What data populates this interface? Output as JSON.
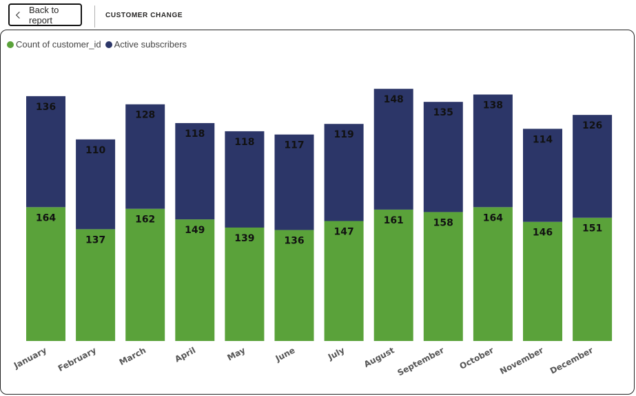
{
  "header": {
    "back_label": "Back to report",
    "page_title": "CUSTOMER CHANGE"
  },
  "legend": [
    {
      "label": "Count of customer_id",
      "color": "#5aa23a"
    },
    {
      "label": "Active subscribers",
      "color": "#2c3668"
    }
  ],
  "chart_data": {
    "type": "bar",
    "stacked": true,
    "categories": [
      "January",
      "February",
      "March",
      "April",
      "May",
      "June",
      "July",
      "August",
      "September",
      "October",
      "November",
      "December"
    ],
    "series": [
      {
        "name": "Count of customer_id",
        "color": "#5aa23a",
        "values": [
          164,
          137,
          162,
          149,
          139,
          136,
          147,
          161,
          158,
          164,
          146,
          151
        ]
      },
      {
        "name": "Active subscribers",
        "color": "#2c3668",
        "values": [
          136,
          110,
          128,
          118,
          118,
          117,
          119,
          148,
          135,
          138,
          114,
          126
        ]
      }
    ],
    "title": "",
    "xlabel": "",
    "ylabel": "",
    "ylim": [
      0,
      310
    ],
    "grid": false,
    "legend_position": "top-left"
  }
}
